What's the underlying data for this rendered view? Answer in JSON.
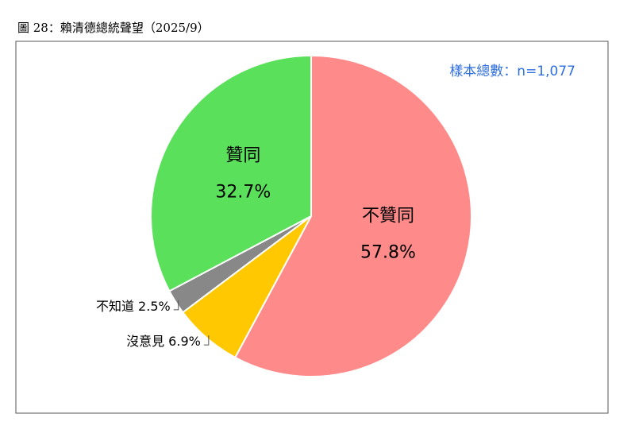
{
  "chart_data": {
    "type": "pie",
    "title": "圖 28：賴清德總統聲望（2025/9）",
    "annotation": "樣本總數：n=1,077",
    "categories": [
      "不贊同",
      "沒意見",
      "不知道",
      "贊同"
    ],
    "values": [
      57.8,
      6.9,
      2.5,
      32.7
    ],
    "value_labels": [
      "57.8%",
      "6.9%",
      "2.5%",
      "32.7%"
    ],
    "colors": [
      "#ff8a8a",
      "#ffc800",
      "#888888",
      "#5ae05a"
    ]
  }
}
